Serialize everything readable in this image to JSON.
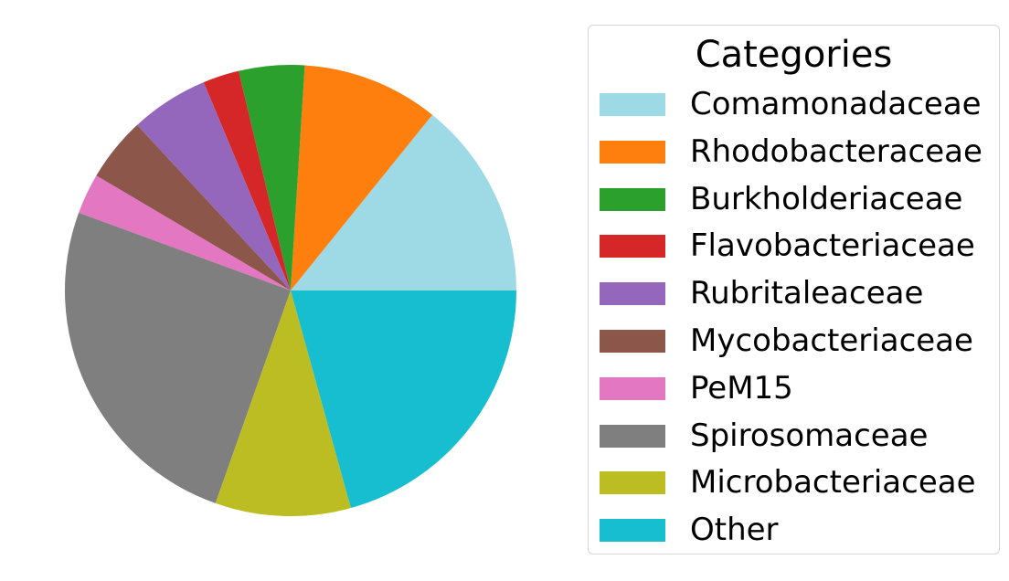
{
  "chart_data": {
    "type": "pie",
    "legend_title": "Categories",
    "legend_position": "right",
    "start_angle_deg": 0,
    "direction": "counterclockwise",
    "slices": [
      {
        "label": "Comamonadaceae",
        "value": 14.2,
        "color": "#9edae5"
      },
      {
        "label": "Rhodobacteraceae",
        "value": 9.8,
        "color": "#ff7f0e"
      },
      {
        "label": "Burkholderiaceae",
        "value": 4.7,
        "color": "#2ca02c"
      },
      {
        "label": "Flavobacteriaceae",
        "value": 2.6,
        "color": "#d62728"
      },
      {
        "label": "Rubritaleaceae",
        "value": 5.6,
        "color": "#9467bd"
      },
      {
        "label": "Mycobacteriaceae",
        "value": 4.6,
        "color": "#8c564b"
      },
      {
        "label": "PeM15",
        "value": 2.9,
        "color": "#e377c2"
      },
      {
        "label": "Spirosomaceae",
        "value": 25.2,
        "color": "#7f7f7f"
      },
      {
        "label": "Microbacteriaceae",
        "value": 9.7,
        "color": "#bcbd22"
      },
      {
        "label": "Other",
        "value": 20.7,
        "color": "#17becf"
      }
    ]
  }
}
